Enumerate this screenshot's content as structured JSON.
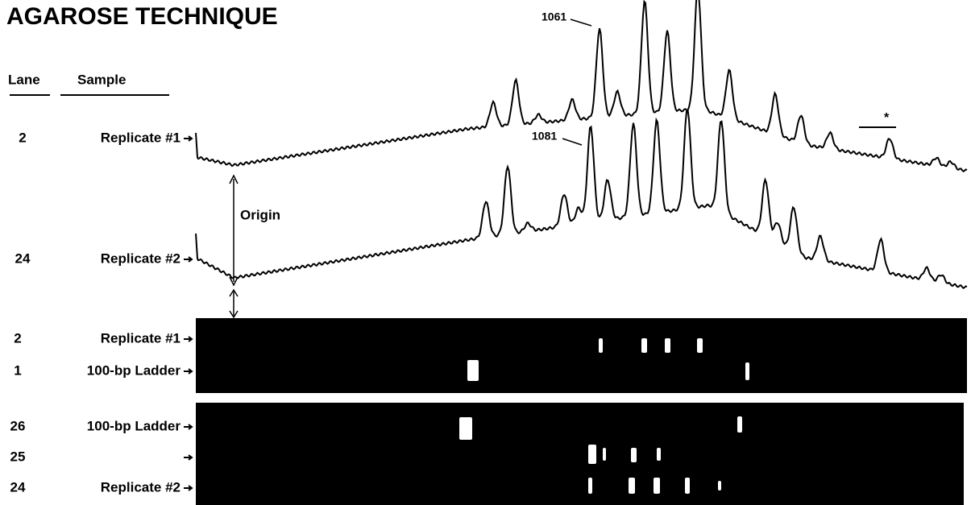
{
  "title": "AGAROSE TECHNIQUE",
  "columns": {
    "lane": "Lane",
    "sample": "Sample"
  },
  "traces": [
    {
      "lane": "2",
      "sample": "Replicate #1",
      "peak_label": "1061"
    },
    {
      "lane": "24",
      "sample": "Replicate #2",
      "peak_label": "1081"
    }
  ],
  "origin_label": "Origin",
  "marker": "*",
  "gels": [
    [
      {
        "lane": "2",
        "sample": "Replicate #1"
      },
      {
        "lane": "1",
        "sample": "100-bp Ladder"
      }
    ],
    [
      {
        "lane": "26",
        "sample": "100-bp Ladder"
      },
      {
        "lane": "25"
      },
      {
        "lane": "24",
        "sample": "Replicate #2"
      }
    ]
  ]
}
